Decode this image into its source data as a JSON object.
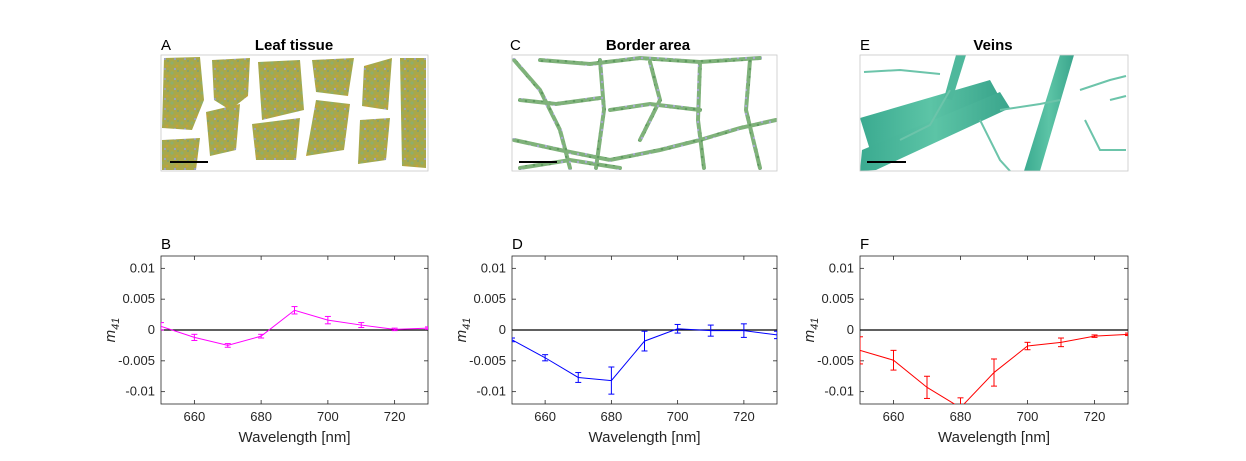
{
  "figure": {
    "panels": [
      {
        "letter": "A",
        "title": "Leaf tissue"
      },
      {
        "letter": "C",
        "title": "Border area"
      },
      {
        "letter": "E",
        "title": "Veins"
      }
    ]
  },
  "chart_data": [
    {
      "type": "line",
      "panel_letter": "B",
      "series_color": "#ff00ff",
      "x": [
        650,
        660,
        670,
        680,
        690,
        700,
        710,
        720,
        730
      ],
      "y": [
        0.0006,
        -0.0012,
        -0.0025,
        -0.001,
        0.0032,
        0.0016,
        0.0008,
        0.0001,
        0.0003
      ],
      "err": [
        0.0006,
        0.0005,
        0.0003,
        0.0003,
        0.0006,
        0.0006,
        0.0004,
        0.0002,
        0.0002
      ],
      "xlabel": "Wavelength [nm]",
      "ylabel": "m",
      "ylabel_sub": "41",
      "xlim": [
        650,
        730
      ],
      "ylim": [
        -0.012,
        0.012
      ],
      "xticks": [
        "660",
        "680",
        "700",
        "720"
      ],
      "yticks": [
        "0.01",
        "0.005",
        "0",
        "-0.005",
        "-0.01"
      ],
      "zero_line": true
    },
    {
      "type": "line",
      "panel_letter": "D",
      "series_color": "#0000ff",
      "x": [
        650,
        660,
        670,
        680,
        690,
        700,
        710,
        720,
        730
      ],
      "y": [
        -0.0016,
        -0.0045,
        -0.0077,
        -0.0082,
        -0.0018,
        0.0002,
        -0.0001,
        -0.0001,
        -0.0008
      ],
      "err": [
        0.0003,
        0.0005,
        0.0008,
        0.0022,
        0.0016,
        0.0007,
        0.0009,
        0.0011,
        0.0006
      ],
      "xlabel": "Wavelength [nm]",
      "ylabel": "m",
      "ylabel_sub": "41",
      "xlim": [
        650,
        730
      ],
      "ylim": [
        -0.012,
        0.012
      ],
      "xticks": [
        "660",
        "680",
        "700",
        "720"
      ],
      "yticks": [
        "0.01",
        "0.005",
        "0",
        "-0.005",
        "-0.01"
      ],
      "zero_line": true
    },
    {
      "type": "line",
      "panel_letter": "F",
      "series_color": "#ff0000",
      "x": [
        650,
        660,
        670,
        680,
        690,
        700,
        710,
        720,
        730
      ],
      "y": [
        -0.0033,
        -0.0049,
        -0.0093,
        -0.0126,
        -0.0069,
        -0.0026,
        -0.002,
        -0.001,
        -0.0007
      ],
      "err": [
        0.0022,
        0.0016,
        0.0018,
        0.0016,
        0.0022,
        0.0006,
        0.0007,
        0.0002,
        0.0002
      ],
      "xlabel": "Wavelength [nm]",
      "ylabel": "m",
      "ylabel_sub": "41",
      "xlim": [
        650,
        730
      ],
      "ylim": [
        -0.012,
        0.012
      ],
      "xticks": [
        "660",
        "680",
        "700",
        "720"
      ],
      "yticks": [
        "0.01",
        "0.005",
        "0",
        "-0.005",
        "-0.01"
      ],
      "zero_line": true
    }
  ]
}
